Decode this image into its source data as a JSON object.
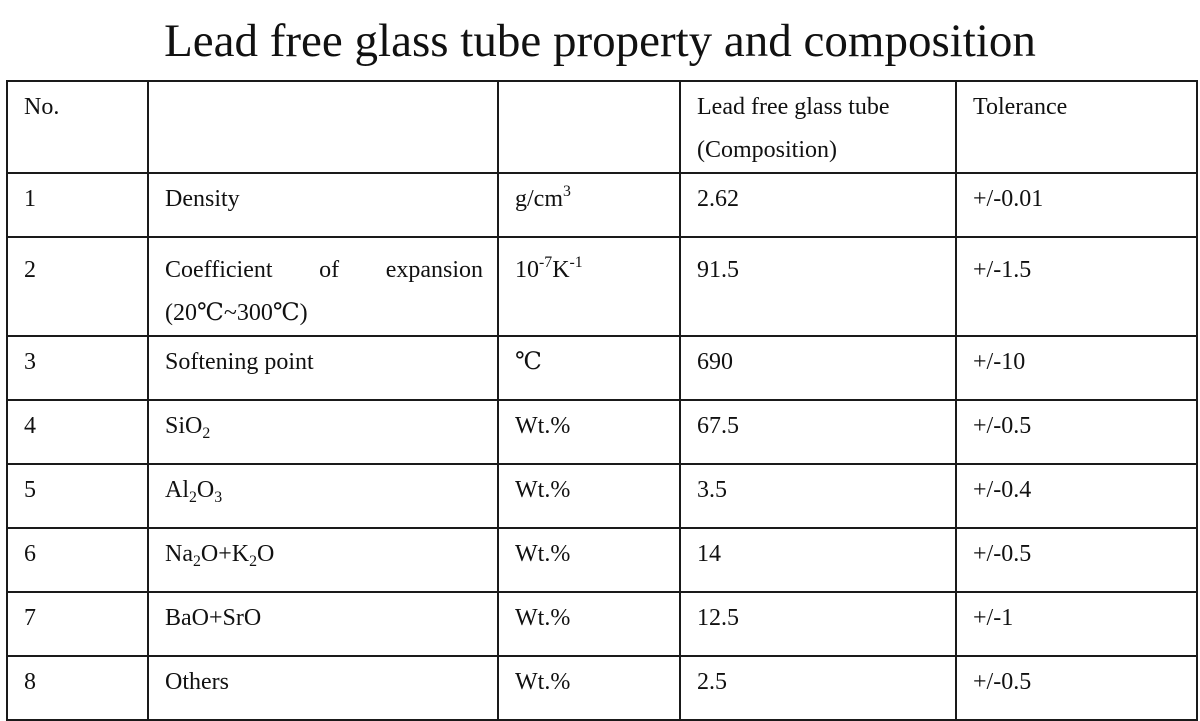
{
  "title": "Lead free glass tube property and composition",
  "header": {
    "no": "No.",
    "property": "",
    "unit": "",
    "value_line1": "Lead free glass tube",
    "value_line2": "(Composition)",
    "tolerance": "Tolerance"
  },
  "rows": [
    {
      "no": "1",
      "property": "Density",
      "unit_base": "g/cm",
      "unit_sup": "3",
      "value": "2.62",
      "tolerance": "+/-0.01"
    },
    {
      "no": "2",
      "property_words": [
        "Coefficient",
        "of",
        "expansion"
      ],
      "property_line2": "(20℃~300℃)",
      "unit_a": "10",
      "unit_a_sup": "-7",
      "unit_b": "K",
      "unit_b_sup": "-1",
      "value": "91.5",
      "tolerance": "+/-1.5"
    },
    {
      "no": "3",
      "property": "Softening point",
      "unit": "℃",
      "value": "690",
      "tolerance": "+/-10"
    },
    {
      "no": "4",
      "property_a": "SiO",
      "property_a_sub": "2",
      "unit": "Wt.%",
      "value": "67.5",
      "tolerance": "+/-0.5"
    },
    {
      "no": "5",
      "property_a": "Al",
      "property_a_sub": "2",
      "property_b": "O",
      "property_b_sub": "3",
      "unit": "Wt.%",
      "value": "3.5",
      "tolerance": "+/-0.4"
    },
    {
      "no": "6",
      "property_a": "Na",
      "property_a_sub": "2",
      "property_b": "O+K",
      "property_b_sub": "2",
      "property_c": "O",
      "unit": "Wt.%",
      "value": "14",
      "tolerance": "+/-0.5"
    },
    {
      "no": "7",
      "property": "BaO+SrO",
      "unit": "Wt.%",
      "value": "12.5",
      "tolerance": "+/-1"
    },
    {
      "no": "8",
      "property": "Others",
      "unit": "Wt.%",
      "value": "2.5",
      "tolerance": "+/-0.5"
    }
  ]
}
